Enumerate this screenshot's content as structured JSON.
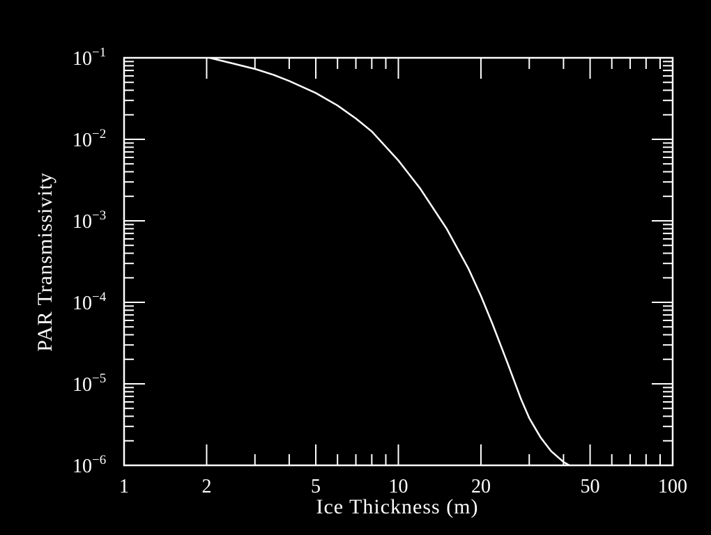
{
  "chart_data": {
    "type": "line",
    "title": "",
    "xlabel": "Ice Thickness (m)",
    "ylabel": "PAR Transmissivity",
    "x_scale": "log",
    "y_scale": "log",
    "xlim": [
      1,
      100
    ],
    "ylim": [
      1e-06,
      0.1
    ],
    "grid": false,
    "x_tick_labels": [
      {
        "value": 1,
        "label": "1"
      },
      {
        "value": 2,
        "label": "2"
      },
      {
        "value": 5,
        "label": "5"
      },
      {
        "value": 10,
        "label": "10"
      },
      {
        "value": 20,
        "label": "20"
      },
      {
        "value": 50,
        "label": "50"
      },
      {
        "value": 100,
        "label": "100"
      }
    ],
    "y_tick_labels": [
      {
        "value": 0.1,
        "base": "10",
        "exp": "−1"
      },
      {
        "value": 0.01,
        "base": "10",
        "exp": "−2"
      },
      {
        "value": 0.001,
        "base": "10",
        "exp": "−3"
      },
      {
        "value": 0.0001,
        "base": "10",
        "exp": "−4"
      },
      {
        "value": 1e-05,
        "base": "10",
        "exp": "−5"
      },
      {
        "value": 1e-06,
        "base": "10",
        "exp": "−6"
      }
    ],
    "series": [
      {
        "color": "#ffffff",
        "x": [
          2.05,
          2.5,
          3.0,
          3.5,
          4.0,
          5.0,
          6.0,
          7.0,
          8.0,
          10.0,
          12.0,
          15.0,
          18.0,
          20.0,
          22.0,
          25.0,
          28.0,
          30.0,
          33.0,
          36.0,
          40.0,
          42.0
        ],
        "y": [
          0.1,
          0.085,
          0.073,
          0.062,
          0.052,
          0.037,
          0.026,
          0.018,
          0.0125,
          0.0055,
          0.0025,
          0.0008,
          0.00026,
          0.00012,
          5.5e-05,
          1.8e-05,
          6.5e-06,
          3.8e-06,
          2.2e-06,
          1.5e-06,
          1.1e-06,
          1e-06
        ]
      }
    ]
  }
}
